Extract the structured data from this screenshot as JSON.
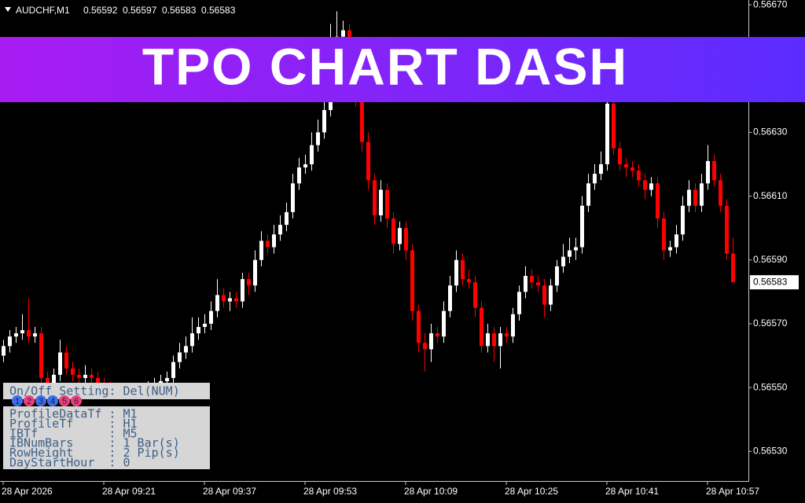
{
  "chart_data": {
    "type": "candlestick",
    "symbol": "AUDCHF,M1",
    "bull_color": "#ffffff",
    "bear_color": "#ff0000",
    "xlim": [
      -0.5,
      118.5
    ],
    "ylim": [
      0.565207,
      0.566715
    ],
    "yticks": [
      {
        "value": 0.5667,
        "label": "0.56670"
      },
      {
        "value": 0.5663,
        "label": "0.56630"
      },
      {
        "value": 0.5661,
        "label": "0.56610"
      },
      {
        "value": 0.5659,
        "label": "0.56590"
      },
      {
        "value": 0.5657,
        "label": "0.56570"
      },
      {
        "value": 0.5655,
        "label": "0.56550"
      },
      {
        "value": 0.5653,
        "label": "0.56530"
      }
    ],
    "xticks": [
      {
        "value": 0,
        "label": "28 Apr 2026"
      },
      {
        "value": 16,
        "label": "28 Apr 09:21"
      },
      {
        "value": 32,
        "label": "28 Apr 09:37"
      },
      {
        "value": 48,
        "label": "28 Apr 09:53"
      },
      {
        "value": 64,
        "label": "28 Apr 10:09"
      },
      {
        "value": 80,
        "label": "28 Apr 10:25"
      },
      {
        "value": 96,
        "label": "28 Apr 10:41"
      },
      {
        "value": 112,
        "label": "28 Apr 10:57"
      }
    ],
    "ohlc": [
      [
        0.5656,
        0.56565,
        0.56558,
        0.56563
      ],
      [
        0.56563,
        0.56568,
        0.56561,
        0.56566
      ],
      [
        0.56566,
        0.56569,
        0.56564,
        0.56567
      ],
      [
        0.56567,
        0.56573,
        0.56565,
        0.56568
      ],
      [
        0.56568,
        0.56578,
        0.56564,
        0.56566
      ],
      [
        0.56566,
        0.56569,
        0.56564,
        0.56567
      ],
      [
        0.56567,
        0.56569,
        0.56551,
        0.56553
      ],
      [
        0.56553,
        0.56555,
        0.56549,
        0.56551
      ],
      [
        0.56551,
        0.56556,
        0.56549,
        0.56554
      ],
      [
        0.56554,
        0.56565,
        0.56552,
        0.56561
      ],
      [
        0.56561,
        0.56563,
        0.56554,
        0.56556
      ],
      [
        0.56556,
        0.56558,
        0.56552,
        0.56554
      ],
      [
        0.56554,
        0.56556,
        0.56551,
        0.56553
      ],
      [
        0.56553,
        0.56557,
        0.56551,
        0.56554
      ],
      [
        0.56554,
        0.56556,
        0.5655,
        0.56553
      ],
      [
        0.56553,
        0.56555,
        0.56549,
        0.56551
      ],
      [
        0.56551,
        0.56553,
        0.56548,
        0.5655
      ],
      [
        0.5655,
        0.56552,
        0.56546,
        0.56548
      ],
      [
        0.56548,
        0.5655,
        0.56545,
        0.56547
      ],
      [
        0.56547,
        0.56549,
        0.56545,
        0.56547
      ],
      [
        0.56547,
        0.5655,
        0.56545,
        0.56548
      ],
      [
        0.56548,
        0.56551,
        0.56546,
        0.56549
      ],
      [
        0.56549,
        0.56551,
        0.56546,
        0.56548
      ],
      [
        0.56548,
        0.56552,
        0.56546,
        0.5655
      ],
      [
        0.5655,
        0.56553,
        0.56548,
        0.56551
      ],
      [
        0.56551,
        0.56554,
        0.56549,
        0.56552
      ],
      [
        0.56552,
        0.56555,
        0.5655,
        0.56553
      ],
      [
        0.56553,
        0.5656,
        0.56551,
        0.56558
      ],
      [
        0.56558,
        0.56564,
        0.56556,
        0.56561
      ],
      [
        0.56561,
        0.56566,
        0.56559,
        0.56563
      ],
      [
        0.56563,
        0.56572,
        0.56561,
        0.56567
      ],
      [
        0.56567,
        0.56572,
        0.56565,
        0.56569
      ],
      [
        0.56569,
        0.56573,
        0.56567,
        0.5657
      ],
      [
        0.5657,
        0.56577,
        0.56568,
        0.56574
      ],
      [
        0.56574,
        0.56584,
        0.56572,
        0.56579
      ],
      [
        0.56579,
        0.56581,
        0.56575,
        0.56577
      ],
      [
        0.56577,
        0.5658,
        0.56574,
        0.56578
      ],
      [
        0.56578,
        0.5658,
        0.56575,
        0.56577
      ],
      [
        0.56577,
        0.56586,
        0.56575,
        0.56584
      ],
      [
        0.56584,
        0.56586,
        0.56579,
        0.56582
      ],
      [
        0.56582,
        0.56593,
        0.5658,
        0.5659
      ],
      [
        0.5659,
        0.56599,
        0.56588,
        0.56596
      ],
      [
        0.56596,
        0.56598,
        0.56592,
        0.56594
      ],
      [
        0.56594,
        0.56601,
        0.56592,
        0.56598
      ],
      [
        0.56598,
        0.56604,
        0.56596,
        0.56601
      ],
      [
        0.56601,
        0.56608,
        0.56599,
        0.56605
      ],
      [
        0.56605,
        0.56617,
        0.56603,
        0.56614
      ],
      [
        0.56614,
        0.56622,
        0.56612,
        0.56619
      ],
      [
        0.56619,
        0.56623,
        0.56617,
        0.5662
      ],
      [
        0.5662,
        0.5663,
        0.56618,
        0.56626
      ],
      [
        0.56626,
        0.56634,
        0.56624,
        0.5663
      ],
      [
        0.5663,
        0.56642,
        0.56628,
        0.56637
      ],
      [
        0.56637,
        0.56664,
        0.56635,
        0.56657
      ],
      [
        0.56657,
        0.56668,
        0.56655,
        0.5666
      ],
      [
        0.5666,
        0.56665,
        0.56658,
        0.56662
      ],
      [
        0.56662,
        0.56664,
        0.56648,
        0.56652
      ],
      [
        0.56652,
        0.56655,
        0.56638,
        0.56642
      ],
      [
        0.56642,
        0.56644,
        0.56624,
        0.56627
      ],
      [
        0.56627,
        0.5663,
        0.56612,
        0.56615
      ],
      [
        0.56615,
        0.56617,
        0.56601,
        0.56604
      ],
      [
        0.56604,
        0.56615,
        0.56602,
        0.56612
      ],
      [
        0.56612,
        0.56614,
        0.566,
        0.56603
      ],
      [
        0.56603,
        0.56605,
        0.56592,
        0.56595
      ],
      [
        0.56595,
        0.56602,
        0.56593,
        0.566
      ],
      [
        0.566,
        0.56602,
        0.5659,
        0.56593
      ],
      [
        0.56593,
        0.56595,
        0.56571,
        0.56574
      ],
      [
        0.56574,
        0.56576,
        0.56561,
        0.56564
      ],
      [
        0.56564,
        0.56567,
        0.56555,
        0.56562
      ],
      [
        0.56562,
        0.5657,
        0.56558,
        0.56567
      ],
      [
        0.56567,
        0.56569,
        0.56564,
        0.56566
      ],
      [
        0.56566,
        0.56577,
        0.56564,
        0.56574
      ],
      [
        0.56574,
        0.56585,
        0.56572,
        0.56582
      ],
      [
        0.56582,
        0.56593,
        0.5658,
        0.5659
      ],
      [
        0.5659,
        0.56592,
        0.56582,
        0.56584
      ],
      [
        0.56584,
        0.56587,
        0.56581,
        0.56583
      ],
      [
        0.56583,
        0.56585,
        0.56572,
        0.56575
      ],
      [
        0.56575,
        0.56577,
        0.56561,
        0.56563
      ],
      [
        0.56563,
        0.5657,
        0.56561,
        0.56567
      ],
      [
        0.56567,
        0.56569,
        0.56558,
        0.56563
      ],
      [
        0.56563,
        0.56569,
        0.56556,
        0.56567
      ],
      [
        0.56567,
        0.56569,
        0.56564,
        0.56566
      ],
      [
        0.56566,
        0.56575,
        0.56564,
        0.56573
      ],
      [
        0.56573,
        0.56582,
        0.56571,
        0.5658
      ],
      [
        0.5658,
        0.56588,
        0.56578,
        0.56585
      ],
      [
        0.56585,
        0.56587,
        0.56581,
        0.56583
      ],
      [
        0.56583,
        0.56585,
        0.5658,
        0.56582
      ],
      [
        0.56582,
        0.56584,
        0.56572,
        0.56576
      ],
      [
        0.56576,
        0.56584,
        0.56574,
        0.56582
      ],
      [
        0.56582,
        0.5659,
        0.5658,
        0.56588
      ],
      [
        0.56588,
        0.56595,
        0.56586,
        0.56591
      ],
      [
        0.56591,
        0.56597,
        0.56589,
        0.56593
      ],
      [
        0.56593,
        0.56597,
        0.5659,
        0.56594
      ],
      [
        0.56594,
        0.5661,
        0.56592,
        0.56607
      ],
      [
        0.56607,
        0.56617,
        0.56605,
        0.56614
      ],
      [
        0.56614,
        0.5662,
        0.56612,
        0.56617
      ],
      [
        0.56617,
        0.56624,
        0.56615,
        0.5662
      ],
      [
        0.5662,
        0.56642,
        0.56618,
        0.56639
      ],
      [
        0.56639,
        0.56641,
        0.56623,
        0.56625
      ],
      [
        0.56625,
        0.56627,
        0.56618,
        0.5662
      ],
      [
        0.5662,
        0.56622,
        0.56616,
        0.56619
      ],
      [
        0.56619,
        0.56621,
        0.56616,
        0.56618
      ],
      [
        0.56618,
        0.5662,
        0.56613,
        0.56615
      ],
      [
        0.56615,
        0.56617,
        0.56609,
        0.56612
      ],
      [
        0.56612,
        0.56616,
        0.5661,
        0.56614
      ],
      [
        0.56614,
        0.56616,
        0.566,
        0.56603
      ],
      [
        0.56603,
        0.56605,
        0.5659,
        0.56593
      ],
      [
        0.56593,
        0.56596,
        0.56591,
        0.56594
      ],
      [
        0.56594,
        0.56601,
        0.56592,
        0.56598
      ],
      [
        0.56598,
        0.5661,
        0.56596,
        0.56607
      ],
      [
        0.56607,
        0.56615,
        0.56605,
        0.56612
      ],
      [
        0.56612,
        0.56614,
        0.56605,
        0.56607
      ],
      [
        0.56607,
        0.56617,
        0.56605,
        0.56614
      ],
      [
        0.56614,
        0.56626,
        0.56612,
        0.56621
      ],
      [
        0.56621,
        0.56623,
        0.56613,
        0.56615
      ],
      [
        0.56615,
        0.56617,
        0.56605,
        0.56607
      ],
      [
        0.56607,
        0.56609,
        0.5659,
        0.56592
      ],
      [
        0.56592,
        0.56597,
        0.56583,
        0.56583
      ]
    ]
  },
  "banner": {
    "title": "TPO CHART DASH"
  },
  "panel": {
    "header": "On/Off Setting: Del(NUM)",
    "buttons": [
      {
        "label": "1",
        "color": "#3d6fe6"
      },
      {
        "label": "2",
        "color": "#f0407a"
      },
      {
        "label": "3",
        "color": "#3d6fe6"
      },
      {
        "label": "4",
        "color": "#3d6fe6"
      },
      {
        "label": "5",
        "color": "#f0407a"
      },
      {
        "label": "6",
        "color": "#f0407a"
      }
    ],
    "settings": [
      "ProfileDataTf : M1",
      "ProfileTf     : H1",
      "IBTf          : M5",
      "IBNumBars     : 1 Bar(s)",
      "RowHeight     : 2 Pip(s)",
      "DayStartHour  : 0"
    ]
  }
}
